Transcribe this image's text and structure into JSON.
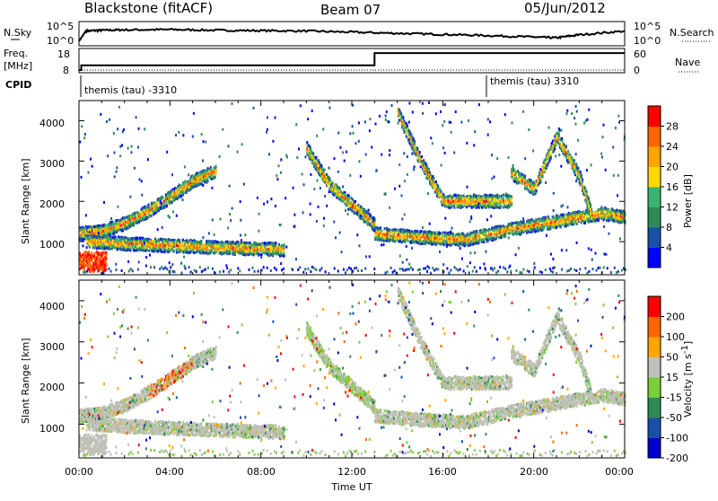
{
  "header": {
    "title": "Blackstone (fitACF)",
    "beam": "Beam 07",
    "date": "05/Jun/2012"
  },
  "sky_panel": {
    "left_label": "N.Sky",
    "right_label": "N.Search",
    "left_ticks": [
      "10^5",
      "10^0"
    ],
    "right_ticks": [
      "10^5",
      "10^0"
    ]
  },
  "freq_panel": {
    "left_label_1": "Freq.",
    "left_label_2": "[MHz]",
    "right_label": "Nave",
    "left_ticks": [
      "18",
      "8"
    ],
    "right_ticks": [
      "60",
      "0"
    ]
  },
  "cpid_panel": {
    "label": "CPID",
    "entries": [
      {
        "text": "themis (tau) -3310",
        "start_hour": 0
      },
      {
        "text": "themis (tau) 3310",
        "start_hour": 18
      }
    ]
  },
  "time_axis": {
    "label": "Time UT",
    "ticks": [
      "00:00",
      "04:00",
      "08:00",
      "12:00",
      "16:00",
      "20:00",
      "00:00"
    ]
  },
  "power_colorbar": {
    "label": "Power [dB]",
    "ticks": [
      "4",
      "8",
      "12",
      "16",
      "20",
      "24",
      "28"
    ]
  },
  "velocity_colorbar": {
    "label_main": "Velocity [m s",
    "label_sup": "-1",
    "label_end": "]",
    "ticks": [
      "200",
      "100",
      "50",
      "15",
      "-15",
      "-50",
      "-100",
      "-200"
    ]
  },
  "power_panel": {
    "ylabel": "Slant Range [km]",
    "yticks": [
      "4000",
      "3000",
      "2000",
      "1000"
    ]
  },
  "velocity_panel": {
    "ylabel": "Slant Range [km]",
    "yticks": [
      "4000",
      "3000",
      "2000",
      "1000"
    ]
  },
  "colors": {
    "power_scale": [
      "#0000ff",
      "#1a4fa8",
      "#2e8b57",
      "#3cb371",
      "#ffd700",
      "#ffa500",
      "#ff6600",
      "#ff0000"
    ],
    "velocity_scale": [
      "#0000cc",
      "#1a4fa8",
      "#2e8b57",
      "#7ccd3c",
      "#c0c0b8",
      "#ffa500",
      "#ff6600",
      "#ff0000"
    ]
  },
  "chart_data": [
    {
      "type": "line",
      "title": "N.Sky / N.Search",
      "x_unit": "hours UT",
      "xlim": [
        0,
        24
      ],
      "ylim": [
        0,
        5
      ],
      "series": [
        {
          "name": "N.Sky",
          "x": [
            0,
            0.3,
            1,
            2,
            4,
            6,
            8,
            10,
            12,
            14,
            16,
            18,
            20,
            21,
            22,
            24
          ],
          "y": [
            0.5,
            3.2,
            3.4,
            3.5,
            3.6,
            3.4,
            3.3,
            3.2,
            2.9,
            2.6,
            2.3,
            2.0,
            1.6,
            1.4,
            2.2,
            3.2
          ]
        }
      ]
    },
    {
      "type": "line",
      "title": "Freq. / Nave",
      "x_unit": "hours UT",
      "xlim": [
        0,
        24
      ],
      "series": [
        {
          "name": "Freq.",
          "x": [
            0,
            0.1,
            0.1,
            13,
            13,
            24
          ],
          "y": [
            8,
            8,
            10.5,
            10.5,
            17,
            17
          ]
        },
        {
          "name": "Nave",
          "x": [
            0,
            24
          ],
          "y": [
            0,
            0
          ]
        }
      ]
    },
    {
      "type": "heatmap",
      "title": "Power [dB]",
      "xlim": [
        0,
        24
      ],
      "ylim": [
        180,
        4500
      ],
      "color_ticks": [
        4,
        8,
        12,
        16,
        20,
        24,
        28
      ],
      "echo_bands": [
        {
          "x": [
            0,
            1,
            2,
            3,
            4,
            5,
            6
          ],
          "y": [
            1200,
            1250,
            1450,
            1750,
            2100,
            2500,
            2750
          ]
        },
        {
          "x": [
            0.3,
            2,
            4,
            6,
            8,
            9
          ],
          "y": [
            1000,
            950,
            900,
            850,
            820,
            800
          ]
        },
        {
          "x": [
            10,
            11,
            12,
            13
          ],
          "y": [
            3300,
            2400,
            1900,
            1400
          ]
        },
        {
          "x": [
            14,
            15,
            16,
            18,
            19
          ],
          "y": [
            4200,
            3000,
            2000,
            2000,
            2000
          ]
        },
        {
          "x": [
            13,
            15,
            17,
            19,
            21,
            23,
            24
          ],
          "y": [
            1200,
            1100,
            1050,
            1300,
            1500,
            1700,
            1600
          ]
        },
        {
          "x": [
            19,
            19.5,
            20,
            21,
            22,
            22.5
          ],
          "y": [
            2700,
            2500,
            2300,
            3600,
            2600,
            1700
          ]
        }
      ]
    },
    {
      "type": "heatmap",
      "title": "Velocity [m s-1]",
      "xlim": [
        0,
        24
      ],
      "ylim": [
        180,
        4500
      ],
      "color_ticks": [
        200,
        100,
        50,
        15,
        -15,
        -50,
        -100,
        -200
      ]
    }
  ]
}
